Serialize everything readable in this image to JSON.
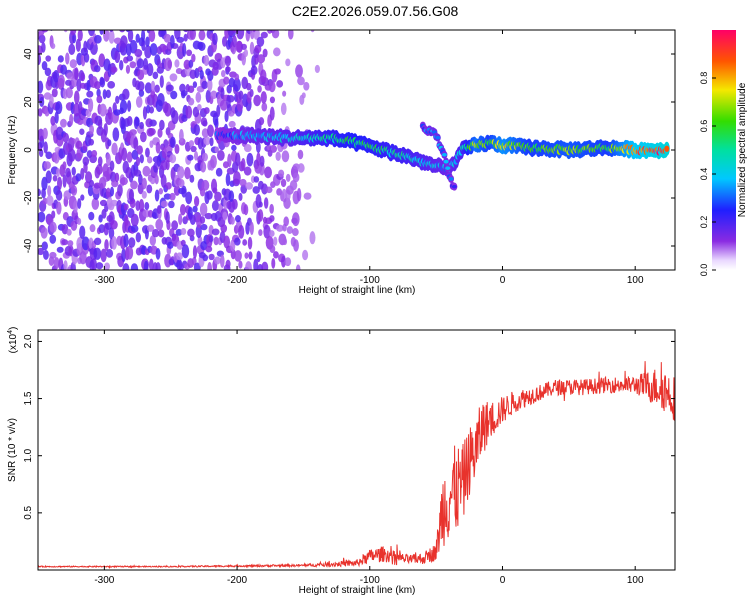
{
  "chart_data": [
    {
      "type": "heatmap",
      "title": "C2E2.2026.059.07.56.G08",
      "xlabel": "Height of straight line (km)",
      "ylabel": "Frequency (Hz)",
      "xlim": [
        -350,
        130
      ],
      "ylim": [
        -50,
        50
      ],
      "xticks": [
        "-300",
        "-200",
        "-100",
        "0",
        "100"
      ],
      "yticks": [
        "-40",
        "-20",
        "0",
        "20",
        "40"
      ],
      "colorbar": {
        "label": "Normalized spectral amplitude",
        "range": [
          0,
          1
        ],
        "ticks": [
          "0.0",
          "0.2",
          "0.4",
          "0.6",
          "0.8"
        ]
      },
      "noise_region": {
        "x_from": -350,
        "x_to": -140,
        "freq_from": -50,
        "freq_to": 50,
        "level": 0.08
      },
      "signal_track": [
        {
          "x": -215,
          "freq": 6,
          "amp": 0.25
        },
        {
          "x": -190,
          "freq": 6,
          "amp": 0.35
        },
        {
          "x": -160,
          "freq": 5,
          "amp": 0.4
        },
        {
          "x": -130,
          "freq": 5,
          "amp": 0.5
        },
        {
          "x": -110,
          "freq": 3,
          "amp": 0.55
        },
        {
          "x": -90,
          "freq": 0,
          "amp": 0.5
        },
        {
          "x": -70,
          "freq": -3,
          "amp": 0.45
        },
        {
          "x": -55,
          "freq": -6,
          "amp": 0.4
        },
        {
          "x": -40,
          "freq": -8,
          "amp": 0.35
        },
        {
          "x": -30,
          "freq": 0,
          "amp": 0.45
        },
        {
          "x": -20,
          "freq": 2,
          "amp": 0.7
        },
        {
          "x": -10,
          "freq": 3,
          "amp": 0.6
        },
        {
          "x": 0,
          "freq": 2,
          "amp": 0.75
        },
        {
          "x": 20,
          "freq": 1,
          "amp": 0.6
        },
        {
          "x": 50,
          "freq": 0,
          "amp": 0.65
        },
        {
          "x": 80,
          "freq": 1,
          "amp": 0.6
        },
        {
          "x": 100,
          "freq": 0,
          "amp": 0.85
        },
        {
          "x": 125,
          "freq": 0,
          "amp": 0.95
        }
      ],
      "branch_track": [
        {
          "x": -60,
          "freq": 10,
          "amp": 0.3
        },
        {
          "x": -50,
          "freq": 6,
          "amp": 0.35
        },
        {
          "x": -45,
          "freq": 0,
          "amp": 0.35
        },
        {
          "x": -40,
          "freq": -10,
          "amp": 0.3
        },
        {
          "x": -35,
          "freq": -18,
          "amp": 0.25
        }
      ]
    },
    {
      "type": "line",
      "xlabel": "Height of straight line (km)",
      "ylabel": "SNR (10 * v/v)",
      "y_scale_label": "(x10",
      "y_scale_exp": "4",
      "y_scale_suffix": ")",
      "xlim": [
        -350,
        130
      ],
      "ylim": [
        0,
        2.1
      ],
      "xticks": [
        "-300",
        "-200",
        "-100",
        "0",
        "100"
      ],
      "yticks": [
        "0.5",
        "1.0",
        "1.5",
        "2.0"
      ],
      "series": [
        {
          "name": "SNR",
          "color": "#e8322c",
          "x": [
            -350,
            -250,
            -150,
            -110,
            -100,
            -90,
            -80,
            -70,
            -60,
            -50,
            -45,
            -40,
            -35,
            -30,
            -25,
            -20,
            -15,
            -10,
            -5,
            0,
            10,
            20,
            30,
            40,
            60,
            80,
            100,
            120,
            130
          ],
          "y": [
            0.03,
            0.03,
            0.04,
            0.06,
            0.12,
            0.14,
            0.11,
            0.09,
            0.1,
            0.16,
            0.55,
            0.65,
            0.7,
            0.75,
            0.95,
            1.05,
            1.25,
            1.3,
            1.35,
            1.4,
            1.48,
            1.52,
            1.56,
            1.6,
            1.6,
            1.62,
            1.62,
            1.6,
            1.5
          ],
          "noise": [
            0.005,
            0.005,
            0.01,
            0.03,
            0.06,
            0.07,
            0.05,
            0.04,
            0.05,
            0.08,
            0.35,
            0.4,
            0.4,
            0.35,
            0.3,
            0.3,
            0.25,
            0.18,
            0.15,
            0.12,
            0.1,
            0.08,
            0.07,
            0.07,
            0.07,
            0.07,
            0.08,
            0.2,
            0.2
          ]
        }
      ]
    }
  ],
  "colors": {
    "axis": "#000000",
    "line": "#e8322c"
  }
}
